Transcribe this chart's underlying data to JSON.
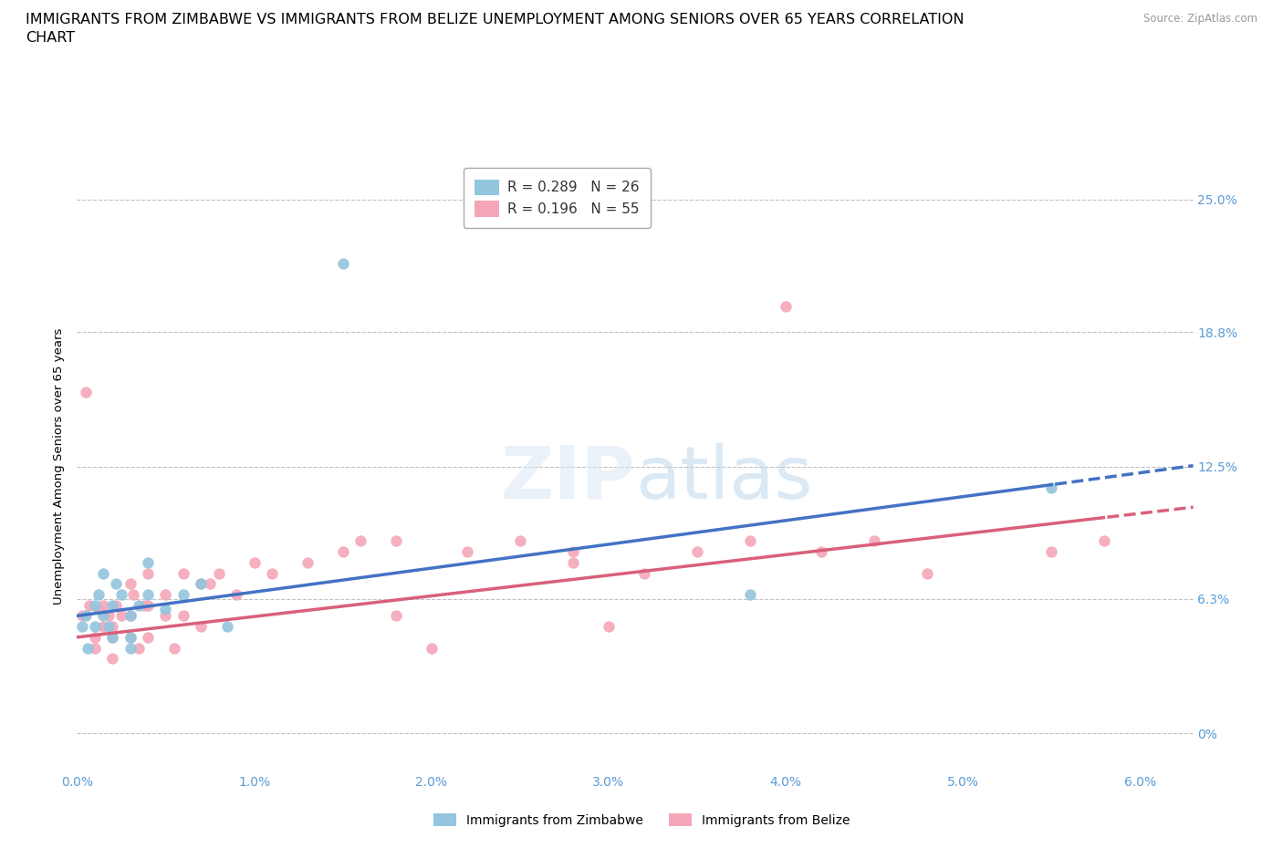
{
  "title_line1": "IMMIGRANTS FROM ZIMBABWE VS IMMIGRANTS FROM BELIZE UNEMPLOYMENT AMONG SENIORS OVER 65 YEARS CORRELATION",
  "title_line2": "CHART",
  "source_text": "Source: ZipAtlas.com",
  "watermark_zip": "ZIP",
  "watermark_atlas": "atlas",
  "ylabel": "Unemployment Among Seniors over 65 years",
  "xlim": [
    0.0,
    0.063
  ],
  "ylim": [
    -0.018,
    0.268
  ],
  "yticks": [
    0.0,
    0.063,
    0.125,
    0.188,
    0.25
  ],
  "ytick_labels": [
    "0%",
    "6.3%",
    "12.5%",
    "18.8%",
    "25.0%"
  ],
  "xticks": [
    0.0,
    0.01,
    0.02,
    0.03,
    0.04,
    0.05,
    0.06
  ],
  "xtick_labels": [
    "0.0%",
    "1.0%",
    "2.0%",
    "3.0%",
    "4.0%",
    "5.0%",
    "6.0%"
  ],
  "zimbabwe_color": "#92c5de",
  "belize_color": "#f4a6b8",
  "line_color_zimbabwe": "#4472c4",
  "line_color_belize": "#d9607a",
  "R_zimbabwe": 0.289,
  "N_zimbabwe": 26,
  "R_belize": 0.196,
  "N_belize": 55,
  "zimbabwe_x": [
    0.0003,
    0.0005,
    0.0006,
    0.001,
    0.001,
    0.0012,
    0.0015,
    0.0015,
    0.0018,
    0.002,
    0.002,
    0.0022,
    0.0025,
    0.003,
    0.003,
    0.003,
    0.0035,
    0.004,
    0.004,
    0.005,
    0.006,
    0.007,
    0.0085,
    0.015,
    0.038,
    0.055
  ],
  "zimbabwe_y": [
    0.05,
    0.055,
    0.04,
    0.06,
    0.05,
    0.065,
    0.075,
    0.055,
    0.05,
    0.06,
    0.045,
    0.07,
    0.065,
    0.055,
    0.045,
    0.04,
    0.06,
    0.08,
    0.065,
    0.058,
    0.065,
    0.07,
    0.05,
    0.22,
    0.065,
    0.115
  ],
  "belize_x": [
    0.0003,
    0.0005,
    0.0007,
    0.001,
    0.001,
    0.0012,
    0.0015,
    0.0015,
    0.0018,
    0.002,
    0.002,
    0.002,
    0.0022,
    0.0025,
    0.003,
    0.003,
    0.003,
    0.0032,
    0.0035,
    0.0038,
    0.004,
    0.004,
    0.004,
    0.005,
    0.005,
    0.0055,
    0.006,
    0.006,
    0.007,
    0.007,
    0.0075,
    0.008,
    0.009,
    0.01,
    0.011,
    0.013,
    0.015,
    0.016,
    0.018,
    0.018,
    0.02,
    0.022,
    0.025,
    0.028,
    0.028,
    0.03,
    0.032,
    0.035,
    0.038,
    0.04,
    0.042,
    0.045,
    0.048,
    0.055,
    0.058
  ],
  "belize_y": [
    0.055,
    0.16,
    0.06,
    0.045,
    0.04,
    0.058,
    0.06,
    0.05,
    0.055,
    0.05,
    0.045,
    0.035,
    0.06,
    0.055,
    0.07,
    0.055,
    0.045,
    0.065,
    0.04,
    0.06,
    0.075,
    0.06,
    0.045,
    0.065,
    0.055,
    0.04,
    0.055,
    0.075,
    0.07,
    0.05,
    0.07,
    0.075,
    0.065,
    0.08,
    0.075,
    0.08,
    0.085,
    0.09,
    0.09,
    0.055,
    0.04,
    0.085,
    0.09,
    0.08,
    0.085,
    0.05,
    0.075,
    0.085,
    0.09,
    0.2,
    0.085,
    0.09,
    0.075,
    0.085,
    0.09
  ],
  "background_color": "#ffffff",
  "grid_color": "#c0c0c0",
  "tick_label_color": "#5b9bd5",
  "title_fontsize": 11.5,
  "axis_label_fontsize": 9.5,
  "tick_fontsize": 10,
  "legend_fontsize": 11
}
